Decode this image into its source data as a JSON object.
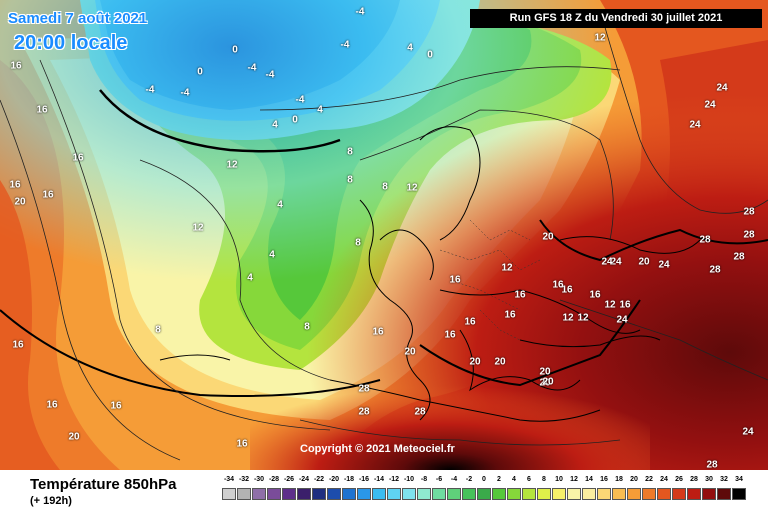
{
  "header": {
    "valid_date": "Samedi 7 août 2021",
    "local_time": "20:00 locale",
    "run_info": "Run GFS 18 Z du Vendredi 30 juillet 2021"
  },
  "copyright": "Copyright © 2021 Meteociel.fr",
  "footer": {
    "parameter": "Température 850hPa",
    "forecast_step": "(+ 192h)"
  },
  "legend": {
    "ticks": [
      "-34",
      "-32",
      "-30",
      "-28",
      "-26",
      "-24",
      "-22",
      "-20",
      "-18",
      "-16",
      "-14",
      "-12",
      "-10",
      "-8",
      "-6",
      "-4",
      "-2",
      "0",
      "2",
      "4",
      "6",
      "8",
      "10",
      "12",
      "14",
      "16",
      "18",
      "20",
      "22",
      "24",
      "26",
      "28",
      "30",
      "32",
      "34"
    ],
    "colors": [
      "#cfcfcf",
      "#b3b3b3",
      "#8f6fa8",
      "#7a4c9a",
      "#5e2f8a",
      "#3b1f6b",
      "#1f2f80",
      "#1d4dad",
      "#1e73d0",
      "#2a97e8",
      "#3bbcf0",
      "#5fd3f3",
      "#7fe2ee",
      "#8fe9cf",
      "#6fdca0",
      "#5fd07a",
      "#46c25a",
      "#3aaa4a",
      "#56c83a",
      "#86d83a",
      "#b4e43e",
      "#dff04a",
      "#f6f06a",
      "#f9f4a8",
      "#fbeea0",
      "#fbd876",
      "#f8bd52",
      "#f59c37",
      "#ee7b2a",
      "#e4571f",
      "#d43a1a",
      "#bd1d13",
      "#931010",
      "#5e0a0a",
      "#000000"
    ]
  },
  "map_values": {
    "labels": [
      {
        "t": "-4"
      },
      {
        "t": "-4"
      },
      {
        "t": "0"
      },
      {
        "t": "0"
      },
      {
        "t": "-4"
      },
      {
        "t": "-4"
      },
      {
        "t": "-4"
      },
      {
        "t": "-4"
      },
      {
        "t": "0"
      },
      {
        "t": "-4"
      },
      {
        "t": "4"
      },
      {
        "t": "0"
      },
      {
        "t": "4"
      },
      {
        "t": "4"
      },
      {
        "t": "8"
      },
      {
        "t": "8"
      },
      {
        "t": "12"
      },
      {
        "t": "12"
      },
      {
        "t": "16"
      },
      {
        "t": "16"
      },
      {
        "t": "16"
      },
      {
        "t": "16"
      },
      {
        "t": "16"
      },
      {
        "t": "16"
      },
      {
        "t": "16"
      },
      {
        "t": "16"
      },
      {
        "t": "20"
      },
      {
        "t": "20"
      },
      {
        "t": "16"
      },
      {
        "t": "12"
      },
      {
        "t": "12"
      },
      {
        "t": "4"
      },
      {
        "t": "4"
      },
      {
        "t": "4"
      },
      {
        "t": "8"
      },
      {
        "t": "8"
      },
      {
        "t": "8"
      },
      {
        "t": "8"
      },
      {
        "t": "12"
      },
      {
        "t": "12"
      },
      {
        "t": "16"
      },
      {
        "t": "12"
      },
      {
        "t": "12"
      },
      {
        "t": "16"
      },
      {
        "t": "16"
      },
      {
        "t": "16"
      },
      {
        "t": "20"
      },
      {
        "t": "20"
      },
      {
        "t": "20"
      },
      {
        "t": "20"
      },
      {
        "t": "24"
      },
      {
        "t": "24"
      },
      {
        "t": "20"
      },
      {
        "t": "24"
      },
      {
        "t": "28"
      },
      {
        "t": "28"
      },
      {
        "t": "28"
      },
      {
        "t": "28"
      },
      {
        "t": "28"
      },
      {
        "t": "24"
      },
      {
        "t": "24"
      },
      {
        "t": "24"
      },
      {
        "t": "24"
      },
      {
        "t": "20"
      },
      {
        "t": "16"
      },
      {
        "t": "16"
      },
      {
        "t": "12"
      },
      {
        "t": "16"
      },
      {
        "t": "28"
      },
      {
        "t": "28"
      },
      {
        "t": "28"
      },
      {
        "t": "28"
      },
      {
        "t": "24"
      },
      {
        "t": "20"
      },
      {
        "t": "16"
      },
      {
        "t": "16"
      },
      {
        "t": "16"
      },
      {
        "t": "20"
      }
    ]
  }
}
